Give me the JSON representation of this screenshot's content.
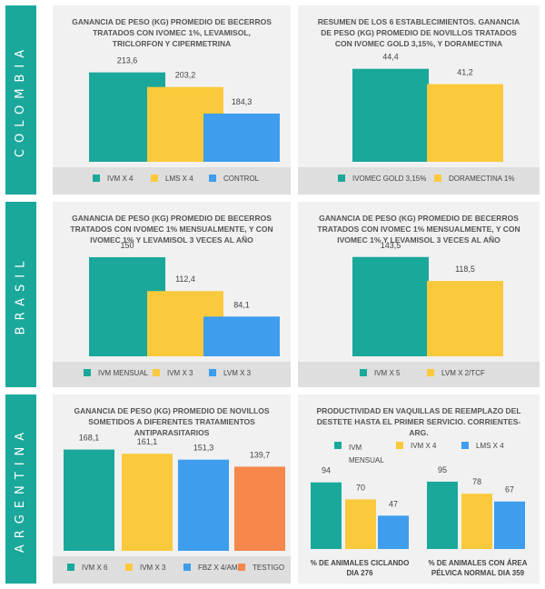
{
  "colors": {
    "teal": "#1aa89b",
    "yellow": "#fbc93c",
    "blue": "#3e9ded",
    "orange": "#f5884a",
    "band": "#1aa89b",
    "panel_bg": "#f1f1f1",
    "legend_bg": "#dedede"
  },
  "countries": [
    "COLOMBIA",
    "BRASIL",
    "ARGENTINA"
  ],
  "chart_data": [
    {
      "type": "bar",
      "title": "GANANCIA DE PESO (kg) PROMEDIO DE BECERROS TRATADOS CON IVOMEC 1%, LEVAMISOL, TRICLORFON Y CIPERMETRINA",
      "categories": [
        "IVM X 4",
        "LMS X 4",
        "CONTROL"
      ],
      "values": [
        213.6,
        203.2,
        184.3
      ],
      "labels": [
        "213,6",
        "203,2",
        "184,3"
      ],
      "colors": [
        "#1aa89b",
        "#fbc93c",
        "#3e9ded"
      ],
      "ylim": [
        150,
        225
      ],
      "legend": [
        "IVM X 4",
        "LMS X 4",
        "CONTROL"
      ],
      "legend_position": "bottom"
    },
    {
      "type": "bar",
      "title": "RESUMEN DE LOS 6 ESTABLECIMIENTOS. GANANCIA DE PESO (kg) PROMEDIO DE NOVILLOS TRATADOS CON IVOMEC GOLD 3,15%, Y DORAMECTINA",
      "categories": [
        "IVOMEC GOLD 3,15%",
        "DORAMECTINA 1%"
      ],
      "values": [
        44.4,
        41.2
      ],
      "labels": [
        "44,4",
        "41,2"
      ],
      "colors": [
        "#1aa89b",
        "#fbc93c"
      ],
      "ylim": [
        25,
        47
      ],
      "legend": [
        "IVOMEC GOLD 3,15%",
        "DORAMECTINA 1%"
      ],
      "legend_position": "bottom"
    },
    {
      "type": "bar",
      "title": "GANANCIA DE PESO (kg) PROMEDIO DE BECERROS TRATADOS CON IVOMEC 1% MENSUALMENTE, Y CON IVOMEC 1% Y LEVAMISOL 3 VECES AL AÑO",
      "categories": [
        "IVM MENSUAL",
        "IVM X 3",
        "LVM X 3"
      ],
      "values": [
        150,
        112.4,
        84.1
      ],
      "labels": [
        "150",
        "112,4",
        "84,1"
      ],
      "colors": [
        "#1aa89b",
        "#fbc93c",
        "#3e9ded"
      ],
      "ylim": [
        40,
        155
      ],
      "legend": [
        "IVM MENSUAL",
        "IVM X 3",
        "LVM X 3"
      ],
      "legend_position": "bottom"
    },
    {
      "type": "bar",
      "title": "GANANCIA DE PESO (kg) PROMEDIO DE BECERROS TRATADOS CON IVOMEC 1% MENSUALMENTE, Y CON IVOMEC 1% Y LEVAMISOL 3 VECES AL AÑO",
      "categories": [
        "IVM X 5",
        "LVM X 2/TCF"
      ],
      "values": [
        143.5,
        118.5
      ],
      "labels": [
        "143,5",
        "118,5"
      ],
      "colors": [
        "#1aa89b",
        "#fbc93c"
      ],
      "ylim": [
        40,
        148
      ],
      "legend": [
        "IVM X 5",
        "LVM X 2/TCF"
      ],
      "legend_position": "bottom"
    },
    {
      "type": "bar",
      "title": "GANANCIA DE PESO (kg) PROMEDIO DE NOVILLOS SOMETIDOS A DIFERENTES TRATAMIENTOS ANTIPARASITARIOS",
      "categories": [
        "IVM X 6",
        "IVM X 3",
        "FBZ X 4/AMZ",
        "TESTIGO"
      ],
      "values": [
        168.1,
        161.1,
        151.3,
        139.7
      ],
      "labels": [
        "168,1",
        "161,1",
        "151,3",
        "139,7"
      ],
      "colors": [
        "#1aa89b",
        "#fbc93c",
        "#3e9ded",
        "#f5884a"
      ],
      "ylim": [
        0,
        175
      ],
      "legend": [
        "IVM X 6",
        "IVM X 3",
        "FBZ X 4/AMZ",
        "TESTIGO"
      ],
      "legend_position": "bottom"
    },
    {
      "type": "bar",
      "title": "PRODUCTIVIDAD EN VAQUILLAS DE REEMPLAZO DEL DESTETE HASTA EL PRIMER SERVICIO. CORRIENTES-ARG.",
      "legend": [
        "IVM MENSUAL",
        "IVM X 4",
        "LMS X 4"
      ],
      "legend_position": "top",
      "categories": [
        "% DE ANIMALES CICLANDO DIA 276",
        "% DE ANIMALES CON ÁREA PÉLVICA NORMAL DIA 359"
      ],
      "series": [
        {
          "name": "IVM MENSUAL",
          "values": [
            94,
            95
          ],
          "color": "#1aa89b"
        },
        {
          "name": "IVM X 4",
          "values": [
            70,
            78
          ],
          "color": "#fbc93c"
        },
        {
          "name": "LMS X 4",
          "values": [
            47,
            67
          ],
          "color": "#3e9ded"
        }
      ],
      "labels": [
        [
          "94",
          "70",
          "47"
        ],
        [
          "95",
          "78",
          "67"
        ]
      ],
      "ylim": [
        0,
        100
      ],
      "group_captions": [
        {
          "line1": "% DE ANIMALES CICLANDO",
          "line2": "DIA 276"
        },
        {
          "line1": "% DE ANIMALES CON ÁREA",
          "line2a": "PÉLVICA NORMAL",
          "line2b": "DIA 359"
        }
      ]
    }
  ]
}
